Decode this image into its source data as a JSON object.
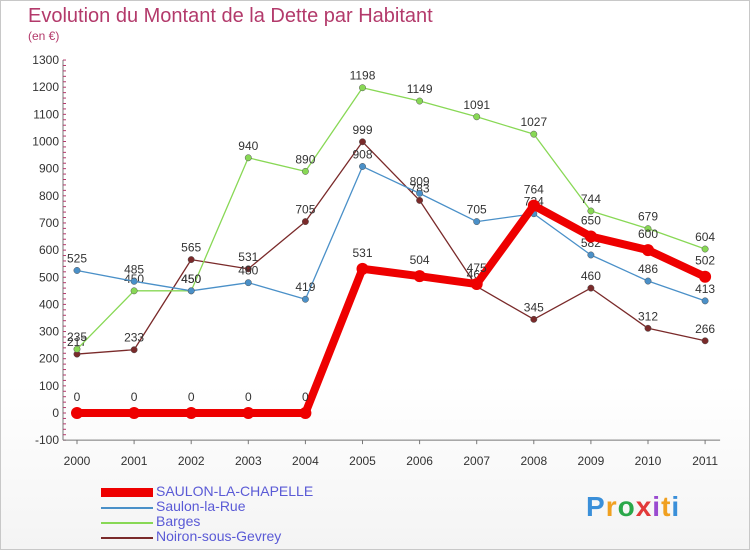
{
  "title": "Evolution du Montant de la Dette par Habitant",
  "subtitle": "(en €)",
  "logo": {
    "text": "Proxiti",
    "colors": [
      "#3a8fd9",
      "#f0a020",
      "#2aa84a",
      "#e23a3a",
      "#9a4ad0",
      "#f0a020",
      "#3a8fd9"
    ]
  },
  "chart_data": {
    "type": "line",
    "title": "Evolution du Montant de la Dette par Habitant",
    "ylabel": "(en €)",
    "x": [
      "2000",
      "2001",
      "2002",
      "2003",
      "2004",
      "2005",
      "2006",
      "2007",
      "2008",
      "2009",
      "2010",
      "2011"
    ],
    "ylim": [
      -100,
      1300
    ],
    "yticks": [
      -100,
      0,
      100,
      200,
      300,
      400,
      500,
      600,
      700,
      800,
      900,
      1000,
      1100,
      1200,
      1300
    ],
    "grid": false,
    "legend_position": "bottom-left",
    "series": [
      {
        "name": "Noiron-sous-Gevrey",
        "color": "#7a2a2a",
        "values": [
          217,
          233,
          565,
          531,
          705,
          999,
          783,
          466,
          345,
          460,
          312,
          266
        ],
        "labels": [
          "217",
          "233",
          "565",
          "531",
          "705",
          "999",
          "783",
          "466",
          "345",
          "460",
          "312",
          "266"
        ]
      },
      {
        "name": "Barges",
        "color": "#88d855",
        "values": [
          235,
          450,
          450,
          940,
          890,
          1198,
          1149,
          1091,
          1027,
          744,
          679,
          604
        ],
        "labels": [
          "235",
          "450",
          "450",
          "940",
          "890",
          "1198",
          "1149",
          "1091",
          "1027",
          "744",
          "679",
          "604"
        ]
      },
      {
        "name": "Saulon-la-Rue",
        "color": "#4a90c8",
        "values": [
          525,
          485,
          450,
          480,
          419,
          908,
          809,
          705,
          734,
          582,
          486,
          413
        ],
        "labels": [
          "525",
          "485",
          "450",
          "480",
          "419",
          "908",
          "809",
          "705",
          "734",
          "582",
          "486",
          "413"
        ]
      },
      {
        "name": "SAULON-LA-CHAPELLE",
        "color": "#ee0000",
        "values": [
          0,
          0,
          0,
          0,
          0,
          531,
          504,
          475,
          764,
          650,
          600,
          502
        ],
        "labels": [
          "0",
          "0",
          "0",
          "0",
          "0",
          "531",
          "504",
          "475",
          "764",
          "650",
          "600",
          "502"
        ]
      }
    ]
  },
  "legend": [
    {
      "label": "SAULON-LA-CHAPELLE",
      "color": "#ee0000",
      "thick": true
    },
    {
      "label": "Saulon-la-Rue",
      "color": "#4a90c8",
      "thick": false
    },
    {
      "label": "Barges",
      "color": "#88d855",
      "thick": false
    },
    {
      "label": "Noiron-sous-Gevrey",
      "color": "#7a2a2a",
      "thick": false
    }
  ]
}
